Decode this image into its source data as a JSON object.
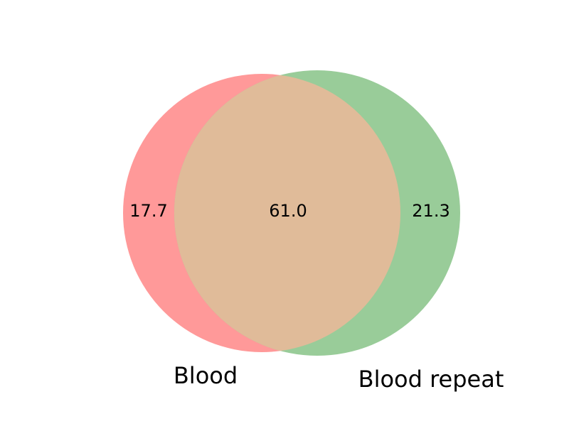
{
  "chart_data": {
    "type": "venn2",
    "sets": [
      {
        "name": "Blood",
        "color": "#ff0000",
        "alpha": 0.4
      },
      {
        "name": "Blood repeat",
        "color": "#008000",
        "alpha": 0.4
      }
    ],
    "subsets": {
      "only_a": 17.7,
      "intersection": 61.0,
      "only_b": 21.3
    },
    "region_labels": {
      "only_a": "17.7",
      "intersection": "61.0",
      "only_b": "21.3"
    },
    "colors": {
      "set_a": "#ff9999",
      "set_b": "#99cc99",
      "overlap": "#e0bb99"
    }
  }
}
